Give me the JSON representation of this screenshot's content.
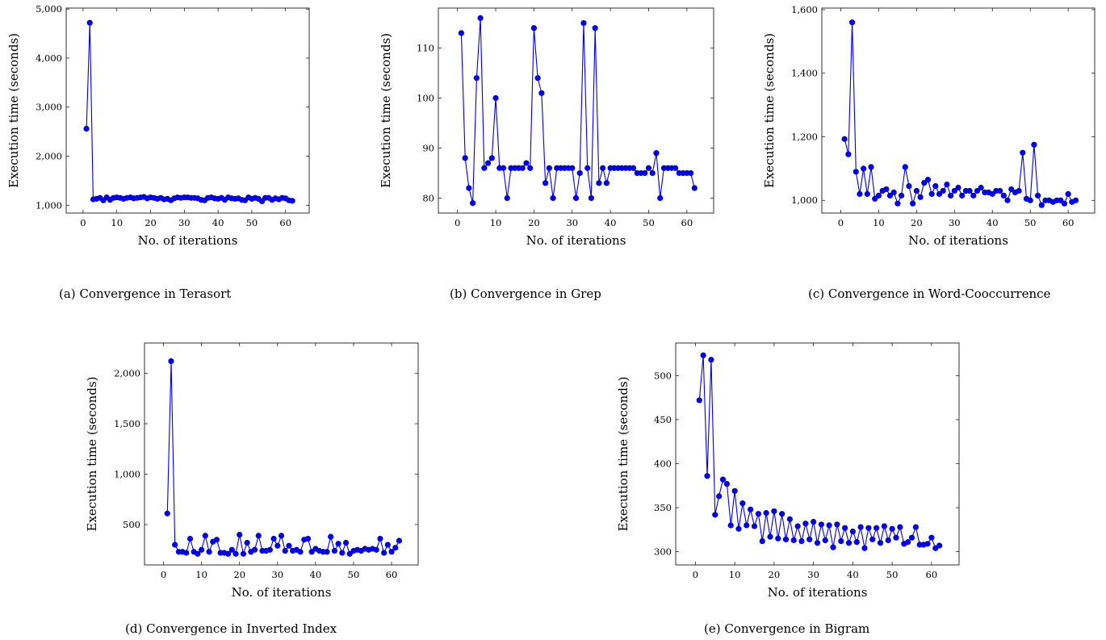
{
  "colors": {
    "series": "#0000e6",
    "axis": "#000000"
  },
  "chart_data": [
    {
      "type": "line",
      "caption_tag": "(a)",
      "caption": "Convergence in Terasort",
      "xlabel": "No. of iterations",
      "ylabel": "Execution time (seconds)",
      "xlim": [
        -5,
        67
      ],
      "ylim": [
        840,
        5020
      ],
      "xticks": [
        0,
        10,
        20,
        30,
        40,
        50,
        60
      ],
      "xtick_labels": [
        "0",
        "10",
        "20",
        "30",
        "40",
        "50",
        "60"
      ],
      "yticks": [
        1000,
        2000,
        3000,
        4000,
        5000
      ],
      "ytick_labels": [
        "1,000",
        "2,000",
        "3,000",
        "4,000",
        "5,000"
      ],
      "series": [
        {
          "x": [
            1,
            2,
            3,
            4,
            5,
            6,
            7,
            8,
            9,
            10,
            11,
            12,
            13,
            14,
            15,
            16,
            17,
            18,
            19,
            20,
            21,
            22,
            23,
            24,
            25,
            26,
            27,
            28,
            29,
            30,
            31,
            32,
            33,
            34,
            35,
            36,
            37,
            38,
            39,
            40,
            41,
            42,
            43,
            44,
            45,
            46,
            47,
            48,
            49,
            50,
            51,
            52,
            53,
            54,
            55,
            56,
            57,
            58,
            59,
            60,
            61,
            62
          ],
          "values": [
            2560,
            4720,
            1120,
            1130,
            1150,
            1100,
            1160,
            1110,
            1150,
            1160,
            1150,
            1130,
            1150,
            1160,
            1140,
            1150,
            1160,
            1170,
            1140,
            1160,
            1150,
            1130,
            1150,
            1120,
            1130,
            1100,
            1140,
            1160,
            1150,
            1160,
            1160,
            1150,
            1150,
            1140,
            1110,
            1100,
            1150,
            1160,
            1140,
            1130,
            1150,
            1110,
            1160,
            1140,
            1130,
            1140,
            1110,
            1100,
            1160,
            1130,
            1150,
            1130,
            1080,
            1150,
            1150,
            1110,
            1140,
            1120,
            1150,
            1140,
            1100,
            1090
          ]
        }
      ]
    },
    {
      "type": "line",
      "caption_tag": "(b)",
      "caption": "Convergence in Grep",
      "xlabel": "No. of iterations",
      "ylabel": "Execution time (seconds)",
      "xlim": [
        -5,
        67
      ],
      "ylim": [
        77,
        118
      ],
      "xticks": [
        0,
        10,
        20,
        30,
        40,
        50,
        60
      ],
      "xtick_labels": [
        "0",
        "10",
        "20",
        "30",
        "40",
        "50",
        "60"
      ],
      "yticks": [
        80,
        90,
        100,
        110
      ],
      "ytick_labels": [
        "80",
        "90",
        "100",
        "110"
      ],
      "series": [
        {
          "x": [
            1,
            2,
            3,
            4,
            5,
            6,
            7,
            8,
            9,
            10,
            11,
            12,
            13,
            14,
            15,
            16,
            17,
            18,
            19,
            20,
            21,
            22,
            23,
            24,
            25,
            26,
            27,
            28,
            29,
            30,
            31,
            32,
            33,
            34,
            35,
            36,
            37,
            38,
            39,
            40,
            41,
            42,
            43,
            44,
            45,
            46,
            47,
            48,
            49,
            50,
            51,
            52,
            53,
            54,
            55,
            56,
            57,
            58,
            59,
            60,
            61,
            62
          ],
          "values": [
            113,
            88,
            82,
            79,
            104,
            116,
            86,
            87,
            88,
            100,
            86,
            86,
            80,
            86,
            86,
            86,
            86,
            87,
            86,
            114,
            104,
            101,
            83,
            86,
            80,
            86,
            86,
            86,
            86,
            86,
            80,
            85,
            115,
            86,
            80,
            114,
            83,
            86,
            83,
            86,
            86,
            86,
            86,
            86,
            86,
            86,
            85,
            85,
            85,
            86,
            85,
            89,
            80,
            86,
            86,
            86,
            86,
            85,
            85,
            85,
            85,
            82
          ]
        }
      ]
    },
    {
      "type": "line",
      "caption_tag": "(c)",
      "caption": "Convergence in Word-Cooccurrence",
      "xlabel": "No. of iterations",
      "ylabel": "Execution time (seconds)",
      "xlim": [
        -5,
        67
      ],
      "ylim": [
        960,
        1605
      ],
      "xticks": [
        0,
        10,
        20,
        30,
        40,
        50,
        60
      ],
      "xtick_labels": [
        "0",
        "10",
        "20",
        "30",
        "40",
        "50",
        "60"
      ],
      "yticks": [
        1000,
        1200,
        1400,
        1600
      ],
      "ytick_labels": [
        "1,000",
        "1,200",
        "1,400",
        "1,600"
      ],
      "series": [
        {
          "x": [
            1,
            2,
            3,
            4,
            5,
            6,
            7,
            8,
            9,
            10,
            11,
            12,
            13,
            14,
            15,
            16,
            17,
            18,
            19,
            20,
            21,
            22,
            23,
            24,
            25,
            26,
            27,
            28,
            29,
            30,
            31,
            32,
            33,
            34,
            35,
            36,
            37,
            38,
            39,
            40,
            41,
            42,
            43,
            44,
            45,
            46,
            47,
            48,
            49,
            50,
            51,
            52,
            53,
            54,
            55,
            56,
            57,
            58,
            59,
            60,
            61,
            62
          ],
          "values": [
            1193,
            1145,
            1560,
            1090,
            1020,
            1100,
            1020,
            1105,
            1005,
            1015,
            1030,
            1035,
            1015,
            1025,
            990,
            1015,
            1105,
            1045,
            990,
            1030,
            1010,
            1055,
            1065,
            1020,
            1045,
            1020,
            1030,
            1050,
            1015,
            1030,
            1040,
            1015,
            1030,
            1030,
            1015,
            1030,
            1040,
            1025,
            1025,
            1020,
            1030,
            1030,
            1015,
            1000,
            1035,
            1025,
            1030,
            1150,
            1005,
            1000,
            1175,
            1015,
            985,
            1000,
            1000,
            995,
            1000,
            1000,
            990,
            1020,
            995,
            1000
          ]
        }
      ]
    },
    {
      "type": "line",
      "caption_tag": "(d)",
      "caption": "Convergence in Inverted Index",
      "xlabel": "No. of iterations",
      "ylabel": "Execution time (seconds)",
      "xlim": [
        -5,
        67
      ],
      "ylim": [
        100,
        2300
      ],
      "xticks": [
        0,
        10,
        20,
        30,
        40,
        50,
        60
      ],
      "xtick_labels": [
        "0",
        "10",
        "20",
        "30",
        "40",
        "50",
        "60"
      ],
      "yticks": [
        500,
        1000,
        1500,
        2000
      ],
      "ytick_labels": [
        "500",
        "1,000",
        "1,500",
        "2,000"
      ],
      "series": [
        {
          "x": [
            1,
            2,
            3,
            4,
            5,
            6,
            7,
            8,
            9,
            10,
            11,
            12,
            13,
            14,
            15,
            16,
            17,
            18,
            19,
            20,
            21,
            22,
            23,
            24,
            25,
            26,
            27,
            28,
            29,
            30,
            31,
            32,
            33,
            34,
            35,
            36,
            37,
            38,
            39,
            40,
            41,
            42,
            43,
            44,
            45,
            46,
            47,
            48,
            49,
            50,
            51,
            52,
            53,
            54,
            55,
            56,
            57,
            58,
            59,
            60,
            61,
            62
          ],
          "values": [
            610,
            2120,
            300,
            230,
            230,
            220,
            360,
            230,
            210,
            250,
            390,
            230,
            330,
            350,
            220,
            220,
            210,
            250,
            210,
            400,
            210,
            320,
            230,
            250,
            390,
            240,
            240,
            250,
            360,
            290,
            390,
            240,
            290,
            240,
            250,
            230,
            350,
            360,
            230,
            260,
            240,
            230,
            230,
            380,
            240,
            310,
            220,
            320,
            210,
            240,
            250,
            240,
            260,
            250,
            260,
            250,
            360,
            220,
            300,
            230,
            270,
            340
          ]
        }
      ]
    },
    {
      "type": "line",
      "caption_tag": "(e)",
      "caption": "Convergence in Bigram",
      "xlabel": "No. of iterations",
      "ylabel": "Execution time (seconds)",
      "xlim": [
        -5,
        67
      ],
      "ylim": [
        285,
        537
      ],
      "xticks": [
        0,
        10,
        20,
        30,
        40,
        50,
        60
      ],
      "xtick_labels": [
        "0",
        "10",
        "20",
        "30",
        "40",
        "50",
        "60"
      ],
      "yticks": [
        300,
        350,
        400,
        450,
        500
      ],
      "ytick_labels": [
        "300",
        "350",
        "400",
        "450",
        "500"
      ],
      "series": [
        {
          "x": [
            1,
            2,
            3,
            4,
            5,
            6,
            7,
            8,
            9,
            10,
            11,
            12,
            13,
            14,
            15,
            16,
            17,
            18,
            19,
            20,
            21,
            22,
            23,
            24,
            25,
            26,
            27,
            28,
            29,
            30,
            31,
            32,
            33,
            34,
            35,
            36,
            37,
            38,
            39,
            40,
            41,
            42,
            43,
            44,
            45,
            46,
            47,
            48,
            49,
            50,
            51,
            52,
            53,
            54,
            55,
            56,
            57,
            58,
            59,
            60,
            61,
            62
          ],
          "values": [
            472,
            523,
            386,
            518,
            342,
            363,
            382,
            377,
            330,
            369,
            326,
            355,
            330,
            348,
            329,
            343,
            312,
            344,
            317,
            346,
            315,
            343,
            314,
            337,
            313,
            329,
            312,
            332,
            314,
            334,
            310,
            331,
            313,
            330,
            305,
            331,
            312,
            327,
            310,
            323,
            311,
            328,
            304,
            327,
            314,
            327,
            310,
            329,
            313,
            326,
            316,
            328,
            309,
            311,
            316,
            328,
            308,
            308,
            309,
            316,
            304,
            307
          ]
        }
      ]
    }
  ]
}
